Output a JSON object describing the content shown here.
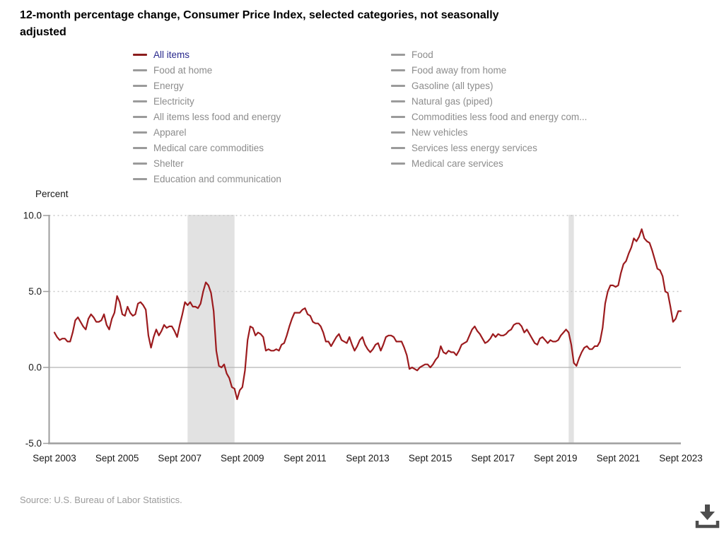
{
  "page": {
    "title_line1": "12-month percentage change, Consumer Price Index, selected categories, not seasonally",
    "title_line2": "adjusted",
    "axis_unit_label": "Percent",
    "source": "Source: U.S. Bureau of Labor Statistics."
  },
  "colors": {
    "line": "#9c1b1e",
    "legend_active_swatch": "#8b1d1d",
    "legend_active_text": "#28288c",
    "legend_inactive_swatch": "#9b9b9b",
    "legend_inactive_text": "#8c8c8c",
    "recession_band": "#e2e2e2",
    "gridline_dotted": "#c9c9c9",
    "zero_line": "#b5b5b5",
    "axis_line": "#9e9e9e",
    "download_icon": "#4d4d4d"
  },
  "legend": {
    "columns": [
      {
        "items": [
          {
            "label": "All items",
            "active": true
          },
          {
            "label": "Food at home",
            "active": false
          },
          {
            "label": "Energy",
            "active": false
          },
          {
            "label": "Electricity",
            "active": false
          },
          {
            "label": "All items less food and energy",
            "active": false
          },
          {
            "label": "Apparel",
            "active": false
          },
          {
            "label": "Medical care commodities",
            "active": false
          },
          {
            "label": "Shelter",
            "active": false
          },
          {
            "label": "Education and communication",
            "active": false
          }
        ]
      },
      {
        "items": [
          {
            "label": "Food",
            "active": false
          },
          {
            "label": "Food away from home",
            "active": false
          },
          {
            "label": "Gasoline (all types)",
            "active": false
          },
          {
            "label": "Natural gas (piped)",
            "active": false
          },
          {
            "label": "Commodities less food and energy com...",
            "active": false
          },
          {
            "label": "New vehicles",
            "active": false
          },
          {
            "label": "Services less energy services",
            "active": false
          },
          {
            "label": "Medical care services",
            "active": false
          }
        ]
      }
    ]
  },
  "chart_data": {
    "type": "line",
    "title": "12-month percentage change, Consumer Price Index, selected categories, not seasonally adjusted",
    "ylabel": "Percent",
    "ylim": [
      -5,
      10
    ],
    "ytick_labels": [
      "10.0",
      "5.0",
      "0.0",
      "-5.0"
    ],
    "ytick_values": [
      10,
      5,
      0,
      -5
    ],
    "xtick_labels": [
      "Sept 2003",
      "Sept 2005",
      "Sept 2007",
      "Sept 2009",
      "Sept 2011",
      "Sept 2013",
      "Sept 2015",
      "Sept 2017",
      "Sept 2019",
      "Sept 2021",
      "Sept 2023"
    ],
    "x_start": "Sept 2003",
    "x_end": "Sept 2023",
    "frequency": "monthly",
    "grid": "horizontal-dotted",
    "legend_position": "top",
    "recession_bands": [
      {
        "start": "Dec 2007",
        "end": "Jun 2009",
        "start_index": 51,
        "end_index": 69
      },
      {
        "start": "Feb 2020",
        "end": "Apr 2020",
        "start_index": 197,
        "end_index": 199
      }
    ],
    "series": [
      {
        "name": "All items",
        "color": "#9c1b1e",
        "values": [
          2.3,
          2.0,
          1.8,
          1.9,
          1.9,
          1.7,
          1.7,
          2.3,
          3.1,
          3.3,
          3.0,
          2.7,
          2.5,
          3.2,
          3.5,
          3.3,
          3.0,
          3.0,
          3.1,
          3.5,
          2.8,
          2.5,
          3.2,
          3.6,
          4.7,
          4.3,
          3.5,
          3.4,
          4.0,
          3.6,
          3.4,
          3.5,
          4.2,
          4.3,
          4.1,
          3.8,
          2.1,
          1.3,
          2.0,
          2.5,
          2.1,
          2.4,
          2.8,
          2.6,
          2.7,
          2.7,
          2.4,
          2.0,
          2.8,
          3.5,
          4.3,
          4.1,
          4.3,
          4.0,
          4.0,
          3.9,
          4.2,
          5.0,
          5.6,
          5.4,
          4.9,
          3.7,
          1.1,
          0.1,
          0.0,
          0.2,
          -0.4,
          -0.7,
          -1.3,
          -1.4,
          -2.1,
          -1.5,
          -1.3,
          -0.2,
          1.8,
          2.7,
          2.6,
          2.1,
          2.3,
          2.2,
          2.0,
          1.1,
          1.2,
          1.1,
          1.1,
          1.2,
          1.1,
          1.5,
          1.6,
          2.1,
          2.7,
          3.2,
          3.6,
          3.6,
          3.6,
          3.8,
          3.9,
          3.5,
          3.4,
          3.0,
          2.9,
          2.9,
          2.7,
          2.3,
          1.7,
          1.7,
          1.4,
          1.7,
          2.0,
          2.2,
          1.8,
          1.7,
          1.6,
          2.0,
          1.5,
          1.1,
          1.4,
          1.8,
          2.0,
          1.5,
          1.2,
          1.0,
          1.2,
          1.5,
          1.6,
          1.1,
          1.5,
          2.0,
          2.1,
          2.1,
          2.0,
          1.7,
          1.7,
          1.7,
          1.3,
          0.8,
          -0.1,
          0.0,
          -0.1,
          -0.2,
          0.0,
          0.1,
          0.2,
          0.2,
          0.0,
          0.2,
          0.5,
          0.7,
          1.4,
          1.0,
          0.9,
          1.1,
          1.0,
          1.0,
          0.8,
          1.1,
          1.5,
          1.6,
          1.7,
          2.1,
          2.5,
          2.7,
          2.4,
          2.2,
          1.9,
          1.6,
          1.7,
          1.9,
          2.2,
          2.0,
          2.2,
          2.1,
          2.1,
          2.2,
          2.4,
          2.5,
          2.8,
          2.9,
          2.9,
          2.7,
          2.3,
          2.5,
          2.2,
          1.9,
          1.6,
          1.5,
          1.9,
          2.0,
          1.8,
          1.6,
          1.8,
          1.7,
          1.7,
          1.8,
          2.1,
          2.3,
          2.5,
          2.3,
          1.5,
          0.3,
          0.1,
          0.6,
          1.0,
          1.3,
          1.4,
          1.2,
          1.2,
          1.4,
          1.4,
          1.7,
          2.6,
          4.2,
          5.0,
          5.4,
          5.4,
          5.3,
          5.4,
          6.2,
          6.8,
          7.0,
          7.5,
          7.9,
          8.5,
          8.3,
          8.6,
          9.1,
          8.5,
          8.3,
          8.2,
          7.7,
          7.1,
          6.5,
          6.4,
          6.0,
          5.0,
          4.9,
          4.0,
          3.0,
          3.2,
          3.7,
          3.7
        ]
      }
    ]
  }
}
